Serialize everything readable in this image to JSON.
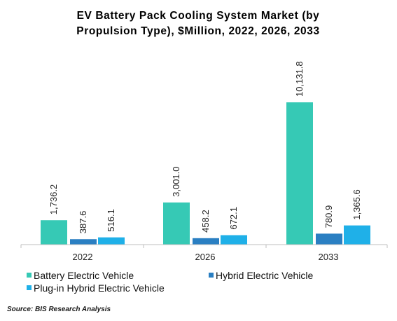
{
  "source": "Source:  BIS Research Analysis",
  "chart_data": {
    "type": "bar",
    "title": "EV Battery Pack Cooling System Market (by Propulsion Type), $Million, 2022, 2026, 2033",
    "title_lines": [
      "EV Battery Pack Cooling System Market (by",
      "Propulsion Type), $Million, 2022, 2026, 2033"
    ],
    "categories": [
      "2022",
      "2026",
      "2033"
    ],
    "series": [
      {
        "name": "Battery Electric Vehicle",
        "color": "#36c9b5",
        "values": [
          1736.2,
          3001.0,
          10131.8
        ],
        "labels": [
          "1,736.2",
          "3,001.0",
          "10,131.8"
        ]
      },
      {
        "name": "Hybrid Electric Vehicle",
        "color": "#2a7fc2",
        "values": [
          387.6,
          458.2,
          780.9
        ],
        "labels": [
          "387.6",
          "458.2",
          "780.9"
        ]
      },
      {
        "name": "Plug-in Hybrid Electric Vehicle",
        "color": "#1fb0e8",
        "values": [
          516.1,
          672.1,
          1365.6
        ],
        "labels": [
          "516.1",
          "672.1",
          "1,365.6"
        ]
      }
    ],
    "xlabel": "",
    "ylabel": "",
    "ylim": [
      0,
      10131.8
    ],
    "grid": false,
    "legend_position": "bottom"
  }
}
